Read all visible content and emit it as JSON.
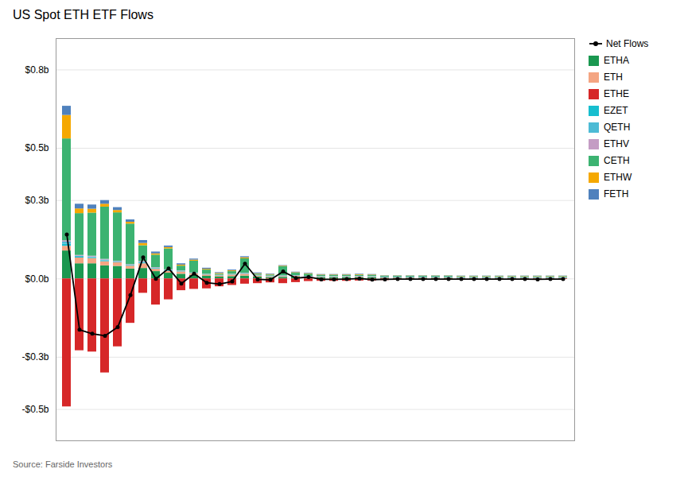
{
  "chart_data": {
    "type": "bar",
    "title": "US Spot ETH ETF Flows",
    "source": "Source: Farside Investors",
    "categories": [
      null,
      null,
      null,
      null,
      null,
      null,
      null,
      null,
      null,
      null,
      null,
      null,
      null,
      null,
      null,
      null,
      null,
      null,
      null,
      null,
      null,
      null,
      null,
      null,
      null,
      null,
      null,
      null,
      null,
      null,
      null,
      null,
      null,
      null,
      null,
      null,
      null,
      null,
      null,
      null
    ],
    "series": [
      {
        "name": "Net Flows",
        "type": "line",
        "color": "black",
        "marker": "o",
        "line_style": "solid",
        "values": [
          0.17,
          -0.195,
          -0.21,
          -0.218,
          -0.185,
          -0.062,
          0.082,
          0.0,
          0.04,
          -0.018,
          0.02,
          -0.015,
          -0.02,
          -0.01,
          0.058,
          -0.002,
          -0.004,
          0.028,
          0.003,
          0.007,
          -0.002,
          -0.002,
          -0.001,
          0.001,
          -0.003,
          -0.002,
          -0.001,
          -0.001,
          -0.001,
          -0.001,
          -0.001,
          -0.001,
          -0.001,
          -0.001,
          -0.001,
          -0.001,
          -0.001,
          -0.002,
          -0.001,
          -0.001
        ]
      },
      {
        "name": "ETHA",
        "color": "#1a9850",
        "values": [
          0.107,
          0.058,
          0.058,
          0.05,
          0.048,
          0.038,
          0.04,
          0.028,
          0.022,
          0.018,
          0.014,
          0.01,
          0.007,
          0.009,
          0.011,
          0.007,
          0.005,
          0.006,
          0.007,
          0.005,
          0.004,
          0.004,
          0.004,
          0.005,
          0.004,
          0.003,
          0.003,
          0.003,
          0.003,
          0.003,
          0.003,
          0.002,
          0.002,
          0.002,
          0.002,
          0.002,
          0.002,
          0.002,
          0.002,
          0.002
        ]
      },
      {
        "name": "ETH",
        "color": "#f4a582",
        "values": [
          0.018,
          0.022,
          0.02,
          0.016,
          0.014,
          0.011,
          0.018,
          0.009,
          0.007,
          0.009,
          0.006,
          0.005,
          0.004,
          0.006,
          0.007,
          0.004,
          0.003,
          0.003,
          0.003,
          0.002,
          0.002,
          0.002,
          0.002,
          0.002,
          0.002,
          0.001,
          0.001,
          0.001,
          0.001,
          0.001,
          0.001,
          0.001,
          0.001,
          0.001,
          0.001,
          0.001,
          0.001,
          0.001,
          0.001,
          0.001
        ]
      },
      {
        "name": "ETHE",
        "color": "#d62728",
        "values": [
          -0.49,
          -0.275,
          -0.28,
          -0.36,
          -0.26,
          -0.17,
          -0.055,
          -0.1,
          -0.08,
          -0.045,
          -0.04,
          -0.038,
          -0.03,
          -0.025,
          -0.02,
          -0.018,
          -0.015,
          -0.018,
          -0.014,
          -0.01,
          -0.009,
          -0.009,
          -0.009,
          -0.008,
          -0.008,
          -0.006,
          -0.005,
          -0.005,
          -0.004,
          -0.004,
          -0.004,
          -0.003,
          -0.003,
          -0.003,
          -0.003,
          -0.003,
          -0.003,
          -0.003,
          -0.003,
          -0.002
        ]
      },
      {
        "name": "EZET",
        "color": "#17becf",
        "values": [
          0.008,
          0.003,
          0.003,
          0.003,
          0.002,
          0.002,
          0.003,
          0.002,
          0.002,
          0.002,
          0.001,
          0.001,
          0.001,
          0.001,
          0.001,
          0.001,
          0.001,
          0.001,
          0.001,
          0.001,
          0.001,
          0.001,
          0.001,
          0.001,
          0.001,
          0.001,
          0.001,
          0.001,
          0.001,
          0.001,
          0.001,
          0.001,
          0.001,
          0.001,
          0.001,
          0.001,
          0.001,
          0.001,
          0.001,
          0.001
        ]
      },
      {
        "name": "QETH",
        "color": "#4dbbd5",
        "values": [
          0.008,
          0.004,
          0.003,
          0.003,
          0.002,
          0.002,
          0.003,
          0.002,
          0.002,
          0.001,
          0.001,
          0.001,
          0.001,
          0.001,
          0.002,
          0.001,
          0.001,
          0.001,
          0.001,
          0.001,
          0.001,
          0.001,
          0.001,
          0.001,
          0.001,
          0.001,
          0.001,
          0.001,
          0.001,
          0.001,
          0.001,
          0.001,
          0.001,
          0.001,
          0.001,
          0.001,
          0.001,
          0.001,
          0.001,
          0.001
        ]
      },
      {
        "name": "ETHV",
        "color": "#c49cc4",
        "values": [
          0.005,
          0.003,
          0.003,
          0.003,
          0.002,
          0.002,
          0.003,
          0.002,
          0.002,
          0.001,
          0.001,
          0.001,
          0.001,
          0.001,
          0.001,
          0.001,
          0.001,
          0.001,
          0.001,
          0.001,
          0.001,
          0.001,
          0.001,
          0.001,
          0.001,
          0.001,
          0.001,
          0.001,
          0.001,
          0.001,
          0.001,
          0.001,
          0.001,
          0.001,
          0.001,
          0.001,
          0.001,
          0.001,
          0.001,
          0.001
        ]
      },
      {
        "name": "CETH",
        "color": "#3cb371",
        "values": [
          0.39,
          0.16,
          0.165,
          0.2,
          0.185,
          0.155,
          0.06,
          0.048,
          0.08,
          0.018,
          0.045,
          0.016,
          0.004,
          0.01,
          0.055,
          0.004,
          0.004,
          0.035,
          0.009,
          0.008,
          0.004,
          0.004,
          0.004,
          0.004,
          0.004,
          0.003,
          0.003,
          0.003,
          0.003,
          0.003,
          0.003,
          0.003,
          0.003,
          0.003,
          0.003,
          0.003,
          0.003,
          0.003,
          0.003,
          0.003
        ]
      },
      {
        "name": "ETHW",
        "color": "#f5a800",
        "values": [
          0.09,
          0.018,
          0.015,
          0.011,
          0.009,
          0.007,
          0.009,
          0.005,
          0.005,
          0.004,
          0.004,
          0.003,
          0.003,
          0.003,
          0.004,
          0.002,
          0.002,
          0.002,
          0.002,
          0.002,
          0.002,
          0.002,
          0.002,
          0.002,
          0.002,
          0.001,
          0.001,
          0.001,
          0.001,
          0.001,
          0.001,
          0.001,
          0.001,
          0.001,
          0.001,
          0.001,
          0.001,
          0.001,
          0.001,
          0.001
        ]
      },
      {
        "name": "FETH",
        "color": "#4f81bd",
        "values": [
          0.035,
          0.018,
          0.016,
          0.014,
          0.011,
          0.009,
          0.011,
          0.007,
          0.006,
          0.005,
          0.004,
          0.004,
          0.003,
          0.003,
          0.004,
          0.003,
          0.002,
          0.002,
          0.002,
          0.002,
          0.002,
          0.002,
          0.002,
          0.002,
          0.002,
          0.001,
          0.001,
          0.001,
          0.001,
          0.001,
          0.001,
          0.001,
          0.001,
          0.001,
          0.001,
          0.001,
          0.001,
          0.001,
          0.001,
          0.001
        ]
      }
    ],
    "stacked": true,
    "ylim": [
      -0.62,
      0.92
    ],
    "yticks": [
      {
        "value": -0.5,
        "label": "-$0.5b"
      },
      {
        "value": -0.3,
        "label": "-$0.3b"
      },
      {
        "value": 0.0,
        "label": "$0.0b"
      },
      {
        "value": 0.3,
        "label": "$0.3b"
      },
      {
        "value": 0.5,
        "label": "$0.5b"
      },
      {
        "value": 0.8,
        "label": "$0.8b"
      }
    ],
    "grid": true,
    "legend": "right",
    "tick_labels": "y"
  }
}
